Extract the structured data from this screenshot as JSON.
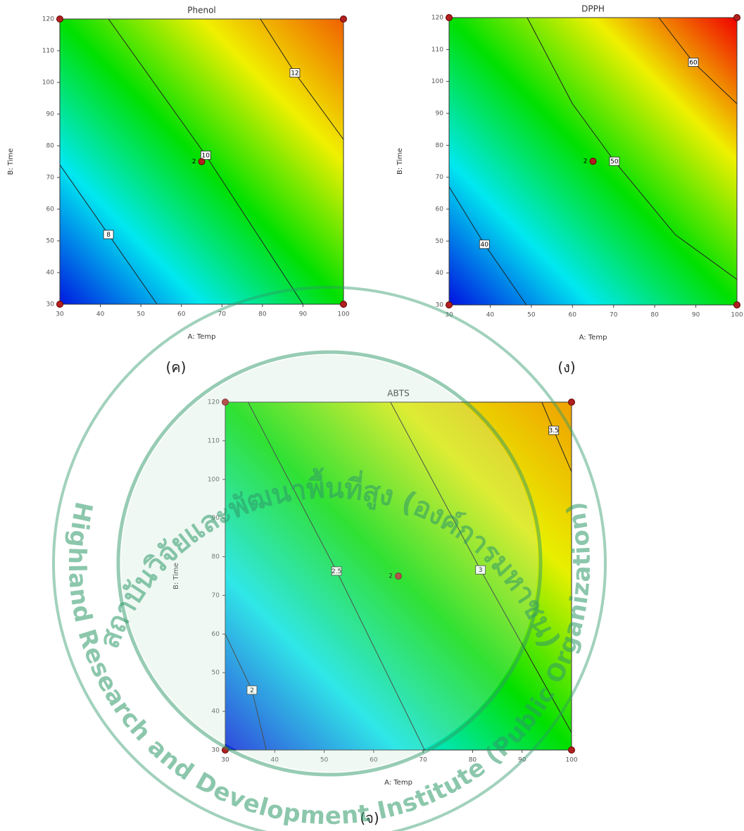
{
  "chart_data": [
    {
      "type": "contour",
      "title": "Phenol",
      "panel_label": "(ค)",
      "xlabel": "A: Temp",
      "ylabel": "B: Time",
      "xlim": [
        30,
        100
      ],
      "ylim": [
        30,
        120
      ],
      "xticks": [
        30,
        40,
        50,
        60,
        70,
        80,
        90,
        100
      ],
      "yticks": [
        30,
        40,
        50,
        60,
        70,
        80,
        90,
        100,
        110,
        120
      ],
      "colors": [
        "#0018e0",
        "#00e8f0",
        "#00e000",
        "#f0f000",
        "#f06000"
      ],
      "contours": [
        {
          "level": 8,
          "x": [
            30,
            42,
            54
          ],
          "y": [
            74,
            52,
            30
          ],
          "label_at": 1
        },
        {
          "level": 10,
          "x": [
            42,
            66,
            90
          ],
          "y": [
            120,
            77,
            30
          ],
          "label_at": 1
        },
        {
          "level": 12,
          "x": [
            79.5,
            88,
            100
          ],
          "y": [
            120,
            103,
            82
          ],
          "label_at": 1
        }
      ],
      "design_points": {
        "x": [
          30,
          100,
          30,
          100
        ],
        "y": [
          30,
          30,
          120,
          120
        ]
      },
      "center_point": {
        "x": 65,
        "y": 75,
        "label": "2"
      }
    },
    {
      "type": "contour",
      "title": "DPPH",
      "panel_label": "(ง)",
      "xlabel": "A: Temp",
      "ylabel": "B: Time",
      "xlim": [
        30,
        100
      ],
      "ylim": [
        30,
        120
      ],
      "xticks": [
        30,
        40,
        50,
        60,
        70,
        80,
        90,
        100
      ],
      "yticks": [
        30,
        40,
        50,
        60,
        70,
        80,
        90,
        100,
        110,
        120
      ],
      "colors": [
        "#0010e0",
        "#00e8f0",
        "#00e000",
        "#f0f000",
        "#f00000"
      ],
      "contours": [
        {
          "level": 40,
          "x": [
            30,
            38.6,
            48.8
          ],
          "y": [
            67,
            49,
            30
          ],
          "label_at": 1
        },
        {
          "level": 50,
          "x": [
            49,
            60,
            70.2,
            85,
            100
          ],
          "y": [
            120,
            93,
            75,
            52,
            38
          ],
          "label_at": 2
        },
        {
          "level": 60,
          "x": [
            81,
            89.4,
            100
          ],
          "y": [
            120,
            106,
            93
          ],
          "label_at": 1
        }
      ],
      "design_points": {
        "x": [
          30,
          100,
          30,
          100
        ],
        "y": [
          30,
          30,
          120,
          120
        ]
      },
      "center_point": {
        "x": 65,
        "y": 75,
        "label": "2"
      }
    },
    {
      "type": "contour",
      "title": "ABTS",
      "panel_label": "(จ)",
      "xlabel": "A: Temp",
      "ylabel": "B: Time",
      "xlim": [
        30,
        100
      ],
      "ylim": [
        30,
        120
      ],
      "xticks": [
        30,
        40,
        50,
        60,
        70,
        80,
        90,
        100
      ],
      "yticks": [
        30,
        40,
        50,
        60,
        70,
        80,
        90,
        100,
        110,
        120
      ],
      "colors": [
        "#0018e0",
        "#00e8f0",
        "#00e000",
        "#e8f000",
        "#f0a000"
      ],
      "contours": [
        {
          "level": 2,
          "x": [
            30,
            35.4,
            38.3
          ],
          "y": [
            60,
            45.5,
            30
          ],
          "label_at": 1
        },
        {
          "level": 2.5,
          "x": [
            34.6,
            52.5,
            70.3
          ],
          "y": [
            120,
            76.3,
            30
          ],
          "label_at": 1
        },
        {
          "level": 3,
          "x": [
            63.4,
            81.6,
            100
          ],
          "y": [
            120,
            76.6,
            34.5
          ],
          "label_at": 1
        },
        {
          "level": 3.5,
          "x": [
            94,
            96.4,
            100
          ],
          "y": [
            120,
            112.7,
            102
          ],
          "label_at": 1
        }
      ],
      "design_points": {
        "x": [
          30,
          100,
          30,
          100
        ],
        "y": [
          30,
          30,
          120,
          120
        ]
      },
      "center_point": {
        "x": 65,
        "y": 75,
        "label": "2"
      }
    }
  ],
  "watermark": {
    "thai": "สถาบันวิจัยและพัฒนาพื้นที่สูง (องค์การมหาชน)",
    "english": "Highland Research and Development Institute (Public Organization)"
  }
}
